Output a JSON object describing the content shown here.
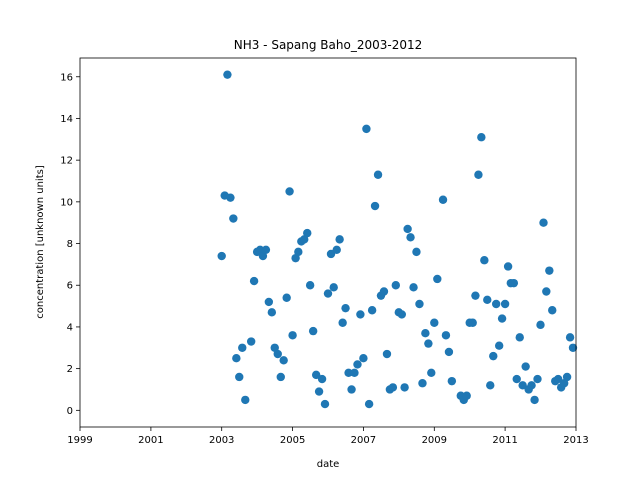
{
  "chart_data": {
    "type": "scatter",
    "title": "NH3 - Sapang Baho_2003-2012",
    "xlabel": "date",
    "ylabel": "concentration [unknown units]",
    "x_ticks": [
      "1999",
      "2001",
      "2003",
      "2005",
      "2007",
      "2009",
      "2011",
      "2013"
    ],
    "y_ticks": [
      "0",
      "2",
      "4",
      "6",
      "8",
      "10",
      "12",
      "14",
      "16"
    ],
    "xlim": [
      "1999-01-01",
      "2013-01-01"
    ],
    "ylim": [
      -0.8,
      16.9
    ],
    "grid": false,
    "legend": "none",
    "marker_color": "#1f77b4",
    "series": [
      {
        "points": [
          {
            "x": "2003-01-01",
            "y": 7.4
          },
          {
            "x": "2003-02-01",
            "y": 10.3
          },
          {
            "x": "2003-03-01",
            "y": 16.1
          },
          {
            "x": "2003-04-01",
            "y": 10.2
          },
          {
            "x": "2003-05-01",
            "y": 9.2
          },
          {
            "x": "2003-06-01",
            "y": 2.5
          },
          {
            "x": "2003-07-01",
            "y": 1.6
          },
          {
            "x": "2003-08-01",
            "y": 3.0
          },
          {
            "x": "2003-09-01",
            "y": 0.5
          },
          {
            "x": "2003-11-01",
            "y": 3.3
          },
          {
            "x": "2003-12-01",
            "y": 6.2
          },
          {
            "x": "2004-01-01",
            "y": 7.6
          },
          {
            "x": "2004-02-01",
            "y": 7.7
          },
          {
            "x": "2004-03-01",
            "y": 7.4
          },
          {
            "x": "2004-04-01",
            "y": 7.7
          },
          {
            "x": "2004-05-01",
            "y": 5.2
          },
          {
            "x": "2004-06-01",
            "y": 4.7
          },
          {
            "x": "2004-07-01",
            "y": 3.0
          },
          {
            "x": "2004-08-01",
            "y": 2.7
          },
          {
            "x": "2004-09-01",
            "y": 1.6
          },
          {
            "x": "2004-10-01",
            "y": 2.4
          },
          {
            "x": "2004-11-01",
            "y": 5.4
          },
          {
            "x": "2004-12-01",
            "y": 10.5
          },
          {
            "x": "2005-01-01",
            "y": 3.6
          },
          {
            "x": "2005-02-01",
            "y": 7.3
          },
          {
            "x": "2005-03-01",
            "y": 7.6
          },
          {
            "x": "2005-04-01",
            "y": 8.1
          },
          {
            "x": "2005-05-01",
            "y": 8.2
          },
          {
            "x": "2005-06-01",
            "y": 8.5
          },
          {
            "x": "2005-07-01",
            "y": 6.0
          },
          {
            "x": "2005-08-01",
            "y": 3.8
          },
          {
            "x": "2005-09-01",
            "y": 1.7
          },
          {
            "x": "2005-10-01",
            "y": 0.9
          },
          {
            "x": "2005-11-01",
            "y": 1.5
          },
          {
            "x": "2005-12-01",
            "y": 0.3
          },
          {
            "x": "2006-01-01",
            "y": 5.6
          },
          {
            "x": "2006-02-01",
            "y": 7.5
          },
          {
            "x": "2006-03-01",
            "y": 5.9
          },
          {
            "x": "2006-04-01",
            "y": 7.7
          },
          {
            "x": "2006-05-01",
            "y": 8.2
          },
          {
            "x": "2006-06-01",
            "y": 4.2
          },
          {
            "x": "2006-07-01",
            "y": 4.9
          },
          {
            "x": "2006-08-01",
            "y": 1.8
          },
          {
            "x": "2006-09-01",
            "y": 1.0
          },
          {
            "x": "2006-10-01",
            "y": 1.8
          },
          {
            "x": "2006-11-01",
            "y": 2.2
          },
          {
            "x": "2006-12-01",
            "y": 4.6
          },
          {
            "x": "2007-01-01",
            "y": 2.5
          },
          {
            "x": "2007-02-01",
            "y": 13.5
          },
          {
            "x": "2007-03-01",
            "y": 0.3
          },
          {
            "x": "2007-04-01",
            "y": 4.8
          },
          {
            "x": "2007-05-01",
            "y": 9.8
          },
          {
            "x": "2007-06-01",
            "y": 11.3
          },
          {
            "x": "2007-07-01",
            "y": 5.5
          },
          {
            "x": "2007-08-01",
            "y": 5.7
          },
          {
            "x": "2007-09-01",
            "y": 2.7
          },
          {
            "x": "2007-10-01",
            "y": 1.0
          },
          {
            "x": "2007-11-01",
            "y": 1.1
          },
          {
            "x": "2007-12-01",
            "y": 6.0
          },
          {
            "x": "2008-01-01",
            "y": 4.7
          },
          {
            "x": "2008-02-01",
            "y": 4.6
          },
          {
            "x": "2008-03-01",
            "y": 1.1
          },
          {
            "x": "2008-04-01",
            "y": 8.7
          },
          {
            "x": "2008-05-01",
            "y": 8.3
          },
          {
            "x": "2008-06-01",
            "y": 5.9
          },
          {
            "x": "2008-07-01",
            "y": 7.6
          },
          {
            "x": "2008-08-01",
            "y": 5.1
          },
          {
            "x": "2008-09-01",
            "y": 1.3
          },
          {
            "x": "2008-10-01",
            "y": 3.7
          },
          {
            "x": "2008-11-01",
            "y": 3.2
          },
          {
            "x": "2008-12-01",
            "y": 1.8
          },
          {
            "x": "2009-01-01",
            "y": 4.2
          },
          {
            "x": "2009-02-01",
            "y": 6.3
          },
          {
            "x": "2009-04-01",
            "y": 10.1
          },
          {
            "x": "2009-05-01",
            "y": 3.6
          },
          {
            "x": "2009-06-01",
            "y": 2.8
          },
          {
            "x": "2009-07-01",
            "y": 1.4
          },
          {
            "x": "2009-10-01",
            "y": 0.7
          },
          {
            "x": "2009-11-01",
            "y": 0.5
          },
          {
            "x": "2009-12-01",
            "y": 0.7
          },
          {
            "x": "2010-01-01",
            "y": 4.2
          },
          {
            "x": "2010-02-01",
            "y": 4.2
          },
          {
            "x": "2010-03-01",
            "y": 5.5
          },
          {
            "x": "2010-04-01",
            "y": 11.3
          },
          {
            "x": "2010-05-01",
            "y": 13.1
          },
          {
            "x": "2010-06-01",
            "y": 7.2
          },
          {
            "x": "2010-07-01",
            "y": 5.3
          },
          {
            "x": "2010-08-01",
            "y": 1.2
          },
          {
            "x": "2010-09-01",
            "y": 2.6
          },
          {
            "x": "2010-10-01",
            "y": 5.1
          },
          {
            "x": "2010-11-01",
            "y": 3.1
          },
          {
            "x": "2010-12-01",
            "y": 4.4
          },
          {
            "x": "2011-01-01",
            "y": 5.1
          },
          {
            "x": "2011-02-01",
            "y": 6.9
          },
          {
            "x": "2011-03-01",
            "y": 6.1
          },
          {
            "x": "2011-04-01",
            "y": 6.1
          },
          {
            "x": "2011-05-01",
            "y": 1.5
          },
          {
            "x": "2011-06-01",
            "y": 3.5
          },
          {
            "x": "2011-07-01",
            "y": 1.2
          },
          {
            "x": "2011-08-01",
            "y": 2.1
          },
          {
            "x": "2011-09-01",
            "y": 1.0
          },
          {
            "x": "2011-10-01",
            "y": 1.2
          },
          {
            "x": "2011-11-01",
            "y": 0.5
          },
          {
            "x": "2011-12-01",
            "y": 1.5
          },
          {
            "x": "2012-01-01",
            "y": 4.1
          },
          {
            "x": "2012-02-01",
            "y": 9.0
          },
          {
            "x": "2012-03-01",
            "y": 5.7
          },
          {
            "x": "2012-04-01",
            "y": 6.7
          },
          {
            "x": "2012-05-01",
            "y": 4.8
          },
          {
            "x": "2012-06-01",
            "y": 1.4
          },
          {
            "x": "2012-07-01",
            "y": 1.5
          },
          {
            "x": "2012-08-01",
            "y": 1.1
          },
          {
            "x": "2012-09-01",
            "y": 1.3
          },
          {
            "x": "2012-10-01",
            "y": 1.6
          },
          {
            "x": "2012-11-01",
            "y": 3.5
          },
          {
            "x": "2012-12-01",
            "y": 3.0
          }
        ]
      }
    ]
  }
}
